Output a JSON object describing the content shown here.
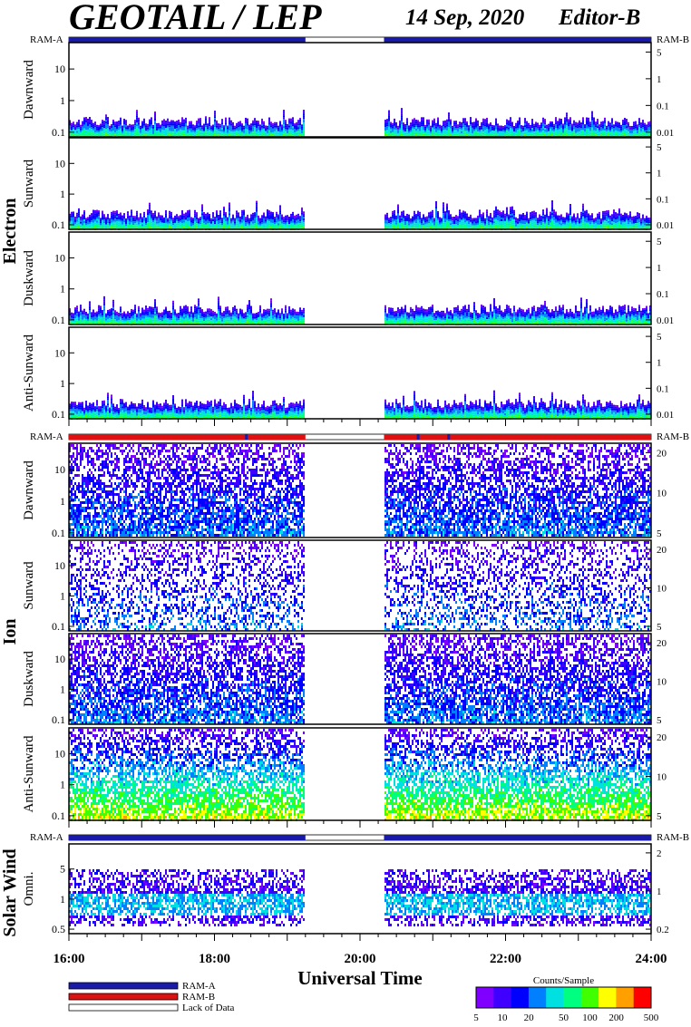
{
  "header": {
    "title": "GEOTAIL / LEP",
    "date": "14 Sep, 2020",
    "editor": "Editor-B"
  },
  "chart_data": {
    "type": "heatmap",
    "x_axis": {
      "label": "Universal Time",
      "ticks": [
        "16:00",
        "18:00",
        "20:00",
        "22:00",
        "24:00"
      ],
      "range_hours": [
        16,
        24
      ],
      "data_gap_hours": [
        19.25,
        20.33
      ]
    },
    "groups": [
      {
        "name": "Electron",
        "status_labels": [
          "RAM-A",
          "RAM-B"
        ],
        "panels": [
          {
            "name": "Dawnward",
            "left_ticks": [
              "10",
              "1",
              "0.1"
            ],
            "right_ticks": [
              "5",
              "1",
              "0.1",
              "0.01"
            ]
          },
          {
            "name": "Sunward",
            "left_ticks": [
              "10",
              "1",
              "0.1"
            ],
            "right_ticks": [
              "5",
              "1",
              "0.1",
              "0.01"
            ]
          },
          {
            "name": "Duskward",
            "left_ticks": [
              "10",
              "1",
              "0.1"
            ],
            "right_ticks": [
              "5",
              "1",
              "0.1",
              "0.01"
            ]
          },
          {
            "name": "Anti-Sunward",
            "left_ticks": [
              "10",
              "1",
              "0.1"
            ],
            "right_ticks": [
              "5",
              "1",
              "0.1",
              "0.01"
            ]
          }
        ]
      },
      {
        "name": "Ion",
        "status_labels": [
          "RAM-A",
          "RAM-B"
        ],
        "panels": [
          {
            "name": "Dawnward",
            "left_ticks": [
              "10",
              "1",
              "0.1"
            ],
            "right_ticks": [
              "20",
              "10",
              "5"
            ]
          },
          {
            "name": "Sunward",
            "left_ticks": [
              "10",
              "1",
              "0.1"
            ],
            "right_ticks": [
              "20",
              "10",
              "5"
            ]
          },
          {
            "name": "Duskward",
            "left_ticks": [
              "10",
              "1",
              "0.1"
            ],
            "right_ticks": [
              "20",
              "10",
              "5"
            ]
          },
          {
            "name": "Anti-Sunward",
            "left_ticks": [
              "10",
              "1",
              "0.1"
            ],
            "right_ticks": [
              "20",
              "10",
              "5"
            ]
          }
        ]
      },
      {
        "name": "Solar Wind",
        "status_labels": [
          "RAM-A",
          "RAM-B"
        ],
        "panels": [
          {
            "name": "Omni.",
            "left_ticks": [
              "5",
              "1",
              "0.5"
            ],
            "right_ticks": [
              "2",
              "1",
              "0.2"
            ]
          }
        ]
      }
    ],
    "legend": {
      "items": [
        {
          "label": "RAM-A",
          "color": "#1a1aaa"
        },
        {
          "label": "RAM-B",
          "color": "#dd1111"
        },
        {
          "label": "Lack of Data",
          "color": "#ffffff"
        }
      ]
    },
    "colorbar": {
      "title": "Counts/Sample",
      "ticks": [
        "5",
        "10",
        "20",
        "50",
        "100",
        "200",
        "500"
      ],
      "colors": [
        "#7f00ff",
        "#4000ff",
        "#0000ff",
        "#0080ff",
        "#00e0e0",
        "#00ff80",
        "#40ff00",
        "#ffff00",
        "#ffa000",
        "#ff0000"
      ]
    }
  }
}
